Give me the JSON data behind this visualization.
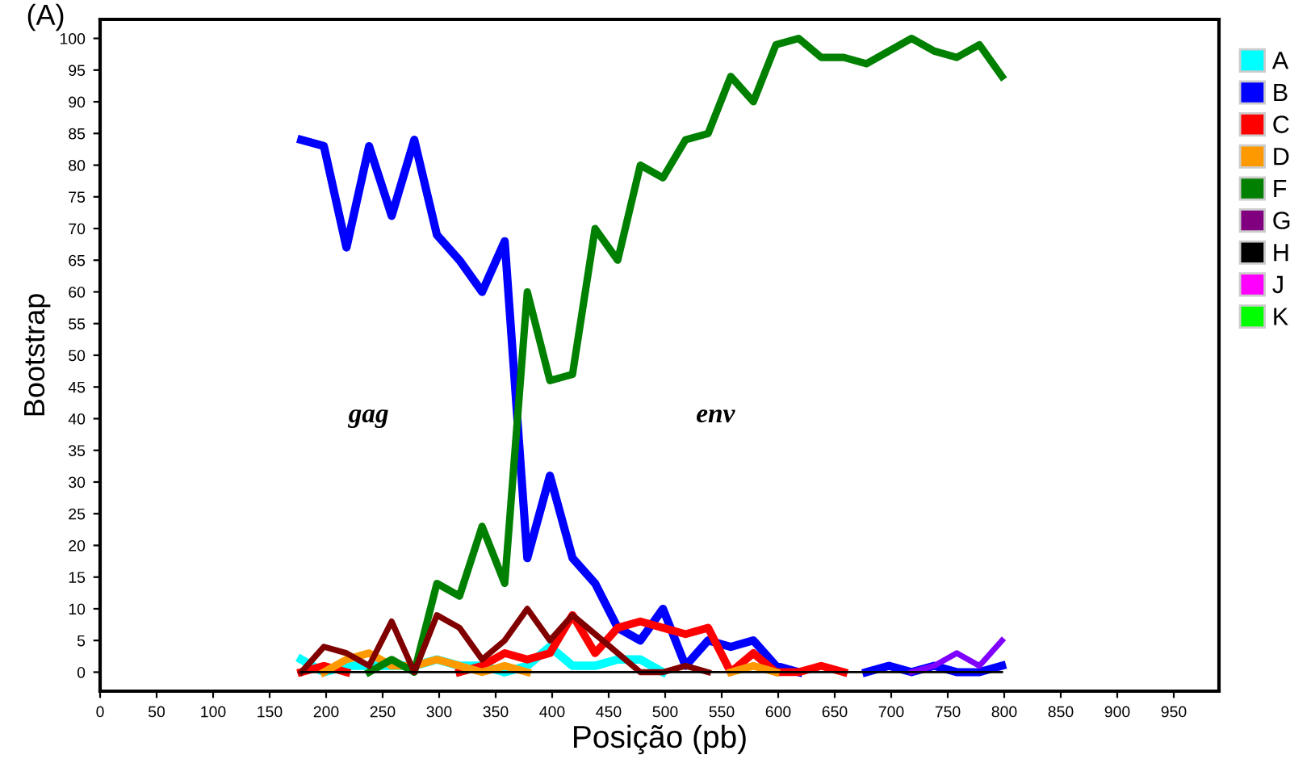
{
  "chart_data": {
    "type": "line",
    "title": "(A)",
    "xlabel": "Posição (pb)",
    "ylabel": "Bootstrap",
    "x": [
      178,
      198,
      218,
      238,
      258,
      278,
      298,
      318,
      338,
      358,
      378,
      398,
      418,
      438,
      458,
      478,
      498,
      518,
      538,
      558,
      578,
      598,
      618,
      638,
      658,
      678,
      698,
      718,
      738,
      758,
      778,
      798
    ],
    "series": [
      {
        "name": "A",
        "color": "#00ffff",
        "values": [
          2,
          0,
          1,
          1,
          1,
          1,
          2,
          1,
          1,
          0,
          1,
          4,
          1,
          1,
          2,
          2,
          0,
          null,
          null,
          null,
          null,
          null,
          null,
          null,
          null,
          null,
          null,
          null,
          null,
          null,
          null,
          null
        ]
      },
      {
        "name": "B",
        "color": "#0000ff",
        "values": [
          84,
          83,
          67,
          83,
          72,
          84,
          69,
          65,
          60,
          68,
          18,
          31,
          18,
          14,
          7,
          5,
          10,
          1,
          5,
          4,
          5,
          1,
          0,
          null,
          null,
          0,
          1,
          0,
          1,
          0,
          0,
          1
        ]
      },
      {
        "name": "C",
        "color": "#ff0000",
        "values": [
          0,
          1,
          0,
          null,
          null,
          null,
          null,
          0,
          1,
          3,
          2,
          3,
          9,
          3,
          7,
          8,
          7,
          6,
          7,
          0,
          3,
          0,
          0,
          1,
          0,
          null,
          null,
          null,
          null,
          null,
          null,
          null
        ]
      },
      {
        "name": "D",
        "color": "#ff9900",
        "values": [
          null,
          0,
          2,
          3,
          1,
          1,
          2,
          1,
          0,
          1,
          0,
          null,
          null,
          null,
          null,
          null,
          null,
          null,
          null,
          0,
          1,
          0,
          null,
          null,
          null,
          null,
          null,
          null,
          null,
          null,
          null,
          null
        ]
      },
      {
        "name": "F",
        "color": "#008000",
        "values": [
          null,
          null,
          null,
          0,
          2,
          0,
          14,
          12,
          23,
          14,
          60,
          46,
          47,
          70,
          65,
          80,
          78,
          84,
          85,
          94,
          90,
          99,
          100,
          97,
          97,
          96,
          98,
          100,
          98,
          97,
          99,
          94
        ]
      },
      {
        "name": "G",
        "color": "#800080",
        "values": [
          null,
          null,
          null,
          null,
          null,
          null,
          null,
          null,
          null,
          null,
          null,
          null,
          null,
          null,
          null,
          null,
          null,
          null,
          null,
          null,
          null,
          null,
          null,
          null,
          null,
          null,
          null,
          null,
          null,
          null,
          null,
          null
        ]
      },
      {
        "name": "H",
        "color": "#000000",
        "values": [
          0,
          0,
          0,
          0,
          0,
          0,
          0,
          0,
          0,
          0,
          0,
          0,
          0,
          0,
          0,
          0,
          0,
          0,
          0,
          0,
          0,
          0,
          0,
          0,
          0,
          0,
          0,
          0,
          0,
          0,
          0,
          0
        ]
      },
      {
        "name": "J",
        "color": "#ff00ff",
        "values": [
          null,
          null,
          null,
          null,
          null,
          null,
          null,
          null,
          null,
          null,
          null,
          null,
          null,
          null,
          null,
          null,
          null,
          null,
          null,
          null,
          null,
          null,
          null,
          null,
          null,
          null,
          null,
          null,
          null,
          null,
          null,
          null
        ]
      },
      {
        "name": "K",
        "color": "#00ff00",
        "values": [
          null,
          null,
          null,
          null,
          null,
          null,
          null,
          null,
          null,
          null,
          null,
          null,
          null,
          null,
          null,
          null,
          null,
          null,
          null,
          null,
          null,
          null,
          null,
          null,
          null,
          null,
          null,
          null,
          null,
          null,
          null,
          null
        ]
      },
      {
        "color": "#800000",
        "values": [
          0,
          4,
          3,
          1,
          8,
          0,
          9,
          7,
          2,
          5,
          10,
          5,
          9,
          6,
          3,
          0,
          0,
          1,
          0,
          null,
          null,
          null,
          null,
          null,
          null,
          null,
          null,
          null,
          null,
          null,
          null,
          null
        ]
      },
      {
        "color": "#8000ff",
        "values": [
          null,
          null,
          null,
          null,
          null,
          null,
          null,
          null,
          null,
          null,
          null,
          null,
          null,
          null,
          null,
          null,
          null,
          null,
          null,
          null,
          null,
          null,
          null,
          null,
          null,
          null,
          null,
          0,
          1,
          3,
          1,
          5
        ]
      }
    ],
    "annotations": [
      "gag",
      "env"
    ],
    "xlim": [
      0,
      990
    ],
    "ylim": [
      -3,
      103
    ],
    "xticks": [
      0,
      50,
      100,
      150,
      200,
      250,
      300,
      350,
      400,
      450,
      500,
      550,
      600,
      650,
      700,
      750,
      800,
      850,
      900,
      950
    ],
    "yticks": [
      0,
      5,
      10,
      15,
      20,
      25,
      30,
      35,
      40,
      45,
      50,
      55,
      60,
      65,
      70,
      75,
      80,
      85,
      90,
      95,
      100
    ],
    "grid": false,
    "legend": "right",
    "marker": "none",
    "line_style": "solid"
  }
}
